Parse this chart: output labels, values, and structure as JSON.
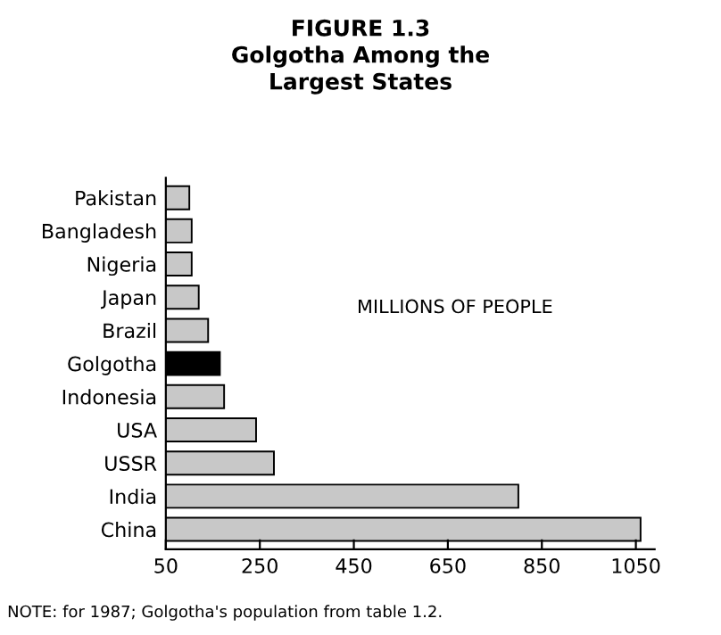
{
  "chart_data": {
    "type": "bar",
    "orientation": "horizontal",
    "title": "FIGURE 1.3\nGolgotha Among the\nLargest States",
    "categories": [
      "Pakistan",
      "Bangladesh",
      "Nigeria",
      "Japan",
      "Brazil",
      "Golgotha",
      "Indonesia",
      "USA",
      "USSR",
      "India",
      "China"
    ],
    "values": [
      100,
      105,
      105,
      120,
      140,
      165,
      174,
      242,
      280,
      800,
      1060
    ],
    "colors": [
      "#c8c8c8",
      "#c8c8c8",
      "#c8c8c8",
      "#c8c8c8",
      "#c8c8c8",
      "#000000",
      "#c8c8c8",
      "#c8c8c8",
      "#c8c8c8",
      "#c8c8c8",
      "#c8c8c8"
    ],
    "xlim": [
      50,
      1090
    ],
    "xticks": [
      50,
      250,
      450,
      650,
      850,
      1050
    ],
    "grid": false,
    "legend": false,
    "annotations": [
      "MILLIONS OF PEOPLE",
      "NOTE: for 1987; Golgotha's population from table 1.2."
    ]
  }
}
